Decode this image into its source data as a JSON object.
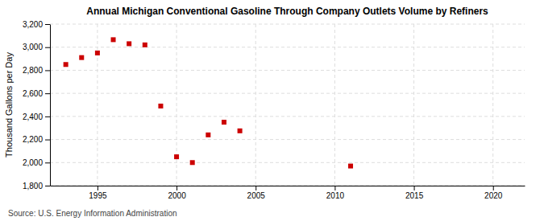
{
  "chart_data": {
    "type": "scatter",
    "title": "Annual Michigan Conventional Gasoline Through Company Outlets Volume by Refiners",
    "y_label": "Thousand Gallons per Day",
    "annotations": [
      "Source: U.S. Energy Information Administration"
    ],
    "x": [
      1993,
      1994,
      1995,
      1996,
      1997,
      1998,
      1999,
      2000,
      2001,
      2002,
      2003,
      2004,
      2011
    ],
    "values": [
      2850,
      2910,
      2950,
      3065,
      3030,
      3020,
      2490,
      2050,
      2000,
      2240,
      2350,
      2275,
      1970
    ],
    "color": "#cc0000",
    "marker": "square",
    "xlim": [
      1992,
      2022
    ],
    "ylim": [
      1800,
      3200
    ],
    "xticks": [
      1995,
      2000,
      2005,
      2010,
      2015,
      2020
    ],
    "yticks": [
      {
        "value": 1800,
        "label": "1,800"
      },
      {
        "value": 2000,
        "label": "2,000"
      },
      {
        "value": 2200,
        "label": "2,200"
      },
      {
        "value": 2400,
        "label": "2,400"
      },
      {
        "value": 2600,
        "label": "2,600"
      },
      {
        "value": 2800,
        "label": "2,800"
      },
      {
        "value": 3000,
        "label": "3,000"
      },
      {
        "value": 3200,
        "label": "3,200"
      }
    ],
    "grid": true
  }
}
